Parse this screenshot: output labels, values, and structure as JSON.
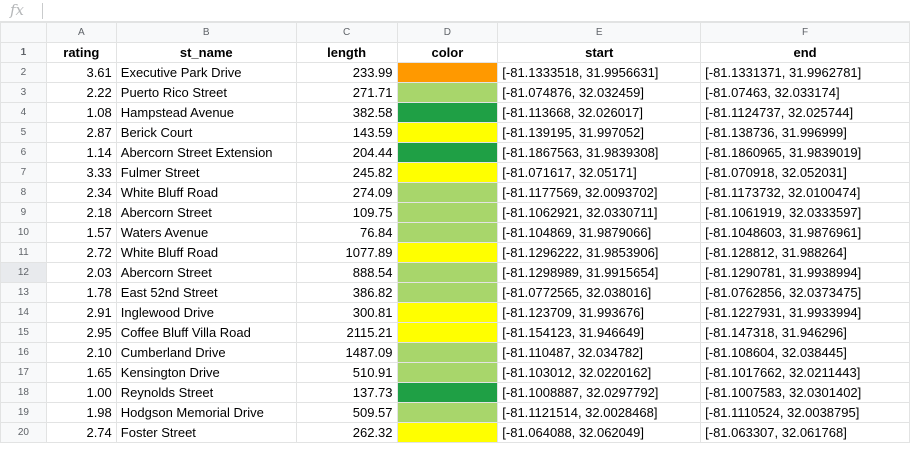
{
  "formula_bar": {
    "fx_label": "fx",
    "value": ""
  },
  "column_letters": [
    "A",
    "B",
    "C",
    "D",
    "E",
    "F"
  ],
  "header": {
    "rating": "rating",
    "st_name": "st_name",
    "length": "length",
    "color": "color",
    "start": "start",
    "end": "end"
  },
  "colors": {
    "orange": "#ff9900",
    "light_green": "#a8d66b",
    "dark_green": "#1fa045",
    "yellow": "#ffff00"
  },
  "rows": [
    {
      "num": "2",
      "rating": "3.61",
      "st_name": "Executive Park Drive",
      "length": "233.99",
      "color": "orange",
      "start": "[-81.1333518, 31.9956631]",
      "end": "[-81.1331371, 31.9962781]"
    },
    {
      "num": "3",
      "rating": "2.22",
      "st_name": "Puerto Rico Street",
      "length": "271.71",
      "color": "light_green",
      "start": "[-81.074876, 32.032459]",
      "end": "[-81.07463, 32.033174]"
    },
    {
      "num": "4",
      "rating": "1.08",
      "st_name": "Hampstead Avenue",
      "length": "382.58",
      "color": "dark_green",
      "start": "[-81.113668, 32.026017]",
      "end": "[-81.1124737, 32.025744]"
    },
    {
      "num": "5",
      "rating": "2.87",
      "st_name": "Berick Court",
      "length": "143.59",
      "color": "yellow",
      "start": "[-81.139195, 31.997052]",
      "end": "[-81.138736, 31.996999]"
    },
    {
      "num": "6",
      "rating": "1.14",
      "st_name": "Abercorn Street Extension",
      "length": "204.44",
      "color": "dark_green",
      "start": "[-81.1867563, 31.9839308]",
      "end": "[-81.1860965, 31.9839019]"
    },
    {
      "num": "7",
      "rating": "3.33",
      "st_name": "Fulmer Street",
      "length": "245.82",
      "color": "yellow",
      "start": "[-81.071617, 32.05171]",
      "end": "[-81.070918, 32.052031]"
    },
    {
      "num": "8",
      "rating": "2.34",
      "st_name": "White Bluff Road",
      "length": "274.09",
      "color": "light_green",
      "start": "[-81.1177569, 32.0093702]",
      "end": "[-81.1173732, 32.0100474]"
    },
    {
      "num": "9",
      "rating": "2.18",
      "st_name": "Abercorn Street",
      "length": "109.75",
      "color": "light_green",
      "start": "[-81.1062921, 32.0330711]",
      "end": "[-81.1061919, 32.0333597]"
    },
    {
      "num": "10",
      "rating": "1.57",
      "st_name": "Waters Avenue",
      "length": "76.84",
      "color": "light_green",
      "start": "[-81.104869, 31.9879066]",
      "end": "[-81.1048603, 31.9876961]"
    },
    {
      "num": "11",
      "rating": "2.72",
      "st_name": "White Bluff Road",
      "length": "1077.89",
      "color": "yellow",
      "start": "[-81.1296222, 31.9853906]",
      "end": "[-81.128812, 31.988264]"
    },
    {
      "num": "12",
      "rating": "2.03",
      "st_name": "Abercorn Street",
      "length": "888.54",
      "color": "light_green",
      "start": "[-81.1298989, 31.9915654]",
      "end": "[-81.1290781, 31.9938994]"
    },
    {
      "num": "13",
      "rating": "1.78",
      "st_name": "East 52nd Street",
      "length": "386.82",
      "color": "light_green",
      "start": "[-81.0772565, 32.038016]",
      "end": "[-81.0762856, 32.0373475]"
    },
    {
      "num": "14",
      "rating": "2.91",
      "st_name": "Inglewood Drive",
      "length": "300.81",
      "color": "yellow",
      "start": "[-81.123709, 31.993676]",
      "end": "[-81.1227931, 31.9933994]"
    },
    {
      "num": "15",
      "rating": "2.95",
      "st_name": "Coffee Bluff Villa Road",
      "length": "2115.21",
      "color": "yellow",
      "start": "[-81.154123, 31.946649]",
      "end": "[-81.147318, 31.946296]"
    },
    {
      "num": "16",
      "rating": "2.10",
      "st_name": "Cumberland Drive",
      "length": "1487.09",
      "color": "light_green",
      "start": "[-81.110487, 32.034782]",
      "end": "[-81.108604, 32.038445]"
    },
    {
      "num": "17",
      "rating": "1.65",
      "st_name": "Kensington Drive",
      "length": "510.91",
      "color": "light_green",
      "start": "[-81.103012, 32.0220162]",
      "end": "[-81.1017662, 32.0211443]"
    },
    {
      "num": "18",
      "rating": "1.00",
      "st_name": "Reynolds Street",
      "length": "137.73",
      "color": "dark_green",
      "start": "[-81.1008887, 32.0297792]",
      "end": "[-81.1007583, 32.0301402]"
    },
    {
      "num": "19",
      "rating": "1.98",
      "st_name": "Hodgson Memorial Drive",
      "length": "509.57",
      "color": "light_green",
      "start": "[-81.1121514, 32.0028468]",
      "end": "[-81.1110524, 32.0038795]"
    },
    {
      "num": "20",
      "rating": "2.74",
      "st_name": "Foster Street",
      "length": "262.32",
      "color": "yellow",
      "start": "[-81.064088, 32.062049]",
      "end": "[-81.063307, 32.061768]"
    }
  ],
  "selected_row": "12"
}
